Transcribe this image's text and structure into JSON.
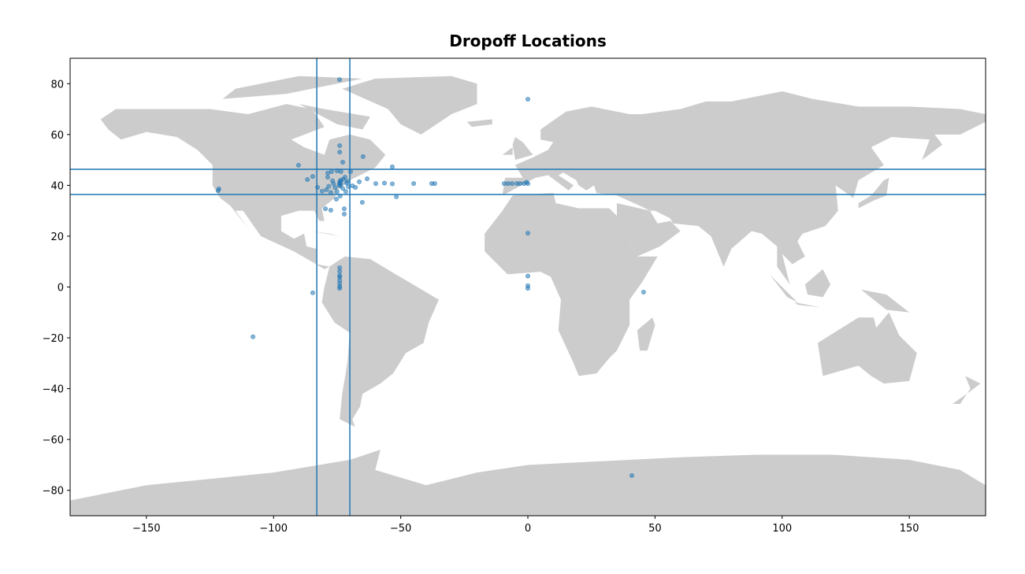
{
  "chart_data": {
    "type": "scatter",
    "title": "Dropoff Locations",
    "x": [
      -74.05,
      0,
      -121.5,
      -121.8,
      -90.2,
      -86.7,
      -84.6,
      -74,
      -74,
      -72.8,
      -64.8,
      -53.3,
      -59.8,
      -56.4,
      -53.3,
      -44.9,
      -37.8,
      -36.6,
      -63.2,
      -66.3,
      -51.7,
      -65.1,
      -79.6,
      -77.5,
      -72.2,
      -72.2,
      -75.3,
      -73.8,
      -9.3,
      -7.8,
      -6.2,
      -4.3,
      -3.1,
      -1.5,
      0,
      -0.5,
      0,
      0,
      0,
      0,
      45.5,
      40.9,
      -84.6,
      -108.1,
      -74,
      -74,
      -74,
      -74,
      -74,
      -74,
      -74,
      -74,
      -78.7,
      -78.7,
      -80.9,
      -82.7,
      -77.2,
      -75,
      -73.5,
      -71.9,
      -70.6,
      -69,
      -67.8,
      -69.7,
      -71.6,
      -75,
      -77.5,
      -79.2,
      -78.3,
      -76.4,
      -73.9,
      -72.6,
      -71.3,
      -73.5,
      -74.2,
      -73.8,
      -74,
      -73.6,
      -72.8,
      -76.8,
      -75.8,
      -70.9
    ],
    "values": [
      81.6,
      73.9,
      38.6,
      37.9,
      47.9,
      42.3,
      43.5,
      55.6,
      53.1,
      49.1,
      51.3,
      47.3,
      40.7,
      40.9,
      40.6,
      40.7,
      40.7,
      40.7,
      42.6,
      41.4,
      35.5,
      33.3,
      30.8,
      30.2,
      30.8,
      28.7,
      34.6,
      35.8,
      40.7,
      40.7,
      40.7,
      40.7,
      40.7,
      40.7,
      40.7,
      41.2,
      21.2,
      4.3,
      0.5,
      -0.5,
      -2.0,
      -74.2,
      -2.3,
      -19.6,
      7.6,
      6.1,
      4.5,
      3.9,
      2.6,
      1.4,
      0.2,
      -0.5,
      44.8,
      43.2,
      37.7,
      39.2,
      45.4,
      45.7,
      45.4,
      43.2,
      39.5,
      39.8,
      39.2,
      45.4,
      37.6,
      37.5,
      37.2,
      38.3,
      39.6,
      40.6,
      41.5,
      42.4,
      40.9,
      40.7,
      40.2,
      39.8,
      41.1,
      42.0,
      38.8,
      41.8,
      39.1,
      41.6
    ],
    "color": "#1f77b4",
    "reference_lines": {
      "x": [
        -83,
        -70
      ],
      "y": [
        36.4,
        46.3
      ]
    },
    "xlim": [
      -180,
      180
    ],
    "ylim": [
      -90,
      90
    ],
    "xticks": [
      {
        "value": -150,
        "label": "−150"
      },
      {
        "value": -100,
        "label": "−100"
      },
      {
        "value": -50,
        "label": "−50"
      },
      0,
      50,
      100,
      150
    ],
    "yticks": [
      {
        "value": -80,
        "label": "−80"
      },
      {
        "value": -60,
        "label": "−60"
      },
      {
        "value": -40,
        "label": "−40"
      },
      {
        "value": -20,
        "label": "−20"
      },
      0,
      20,
      40,
      60,
      80
    ]
  }
}
